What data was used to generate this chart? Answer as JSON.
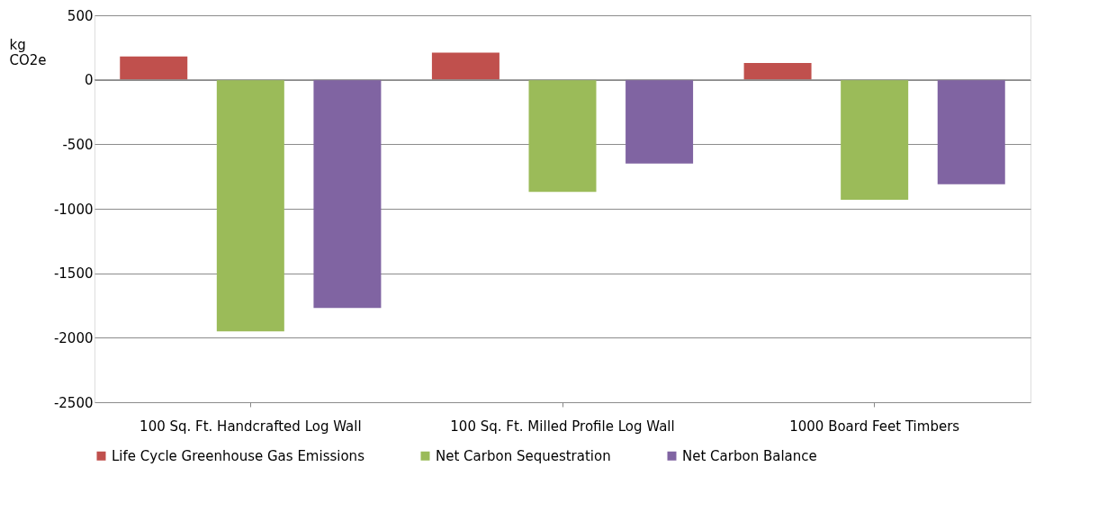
{
  "chart_data": {
    "type": "bar",
    "ylabel": "kg CO2e",
    "categories": [
      "100 Sq. Ft. Handcrafted Log Wall",
      "100 Sq. Ft. Milled Profile Log Wall",
      "1000 Board Feet Timbers"
    ],
    "series": [
      {
        "name": "Life Cycle Greenhouse Gas Emissions",
        "color": "#c0504d",
        "values": [
          180,
          210,
          130
        ]
      },
      {
        "name": "Net Carbon Sequestration",
        "color": "#9bbb59",
        "values": [
          -1950,
          -870,
          -930
        ]
      },
      {
        "name": "Net Carbon Balance",
        "color": "#8064a2",
        "values": [
          -1770,
          -650,
          -810
        ]
      }
    ],
    "ylim": [
      -2500,
      500
    ],
    "yticks": [
      -2500,
      -2000,
      -1500,
      -1000,
      -500,
      0,
      500
    ],
    "grid": "y",
    "legend": "bottom"
  }
}
